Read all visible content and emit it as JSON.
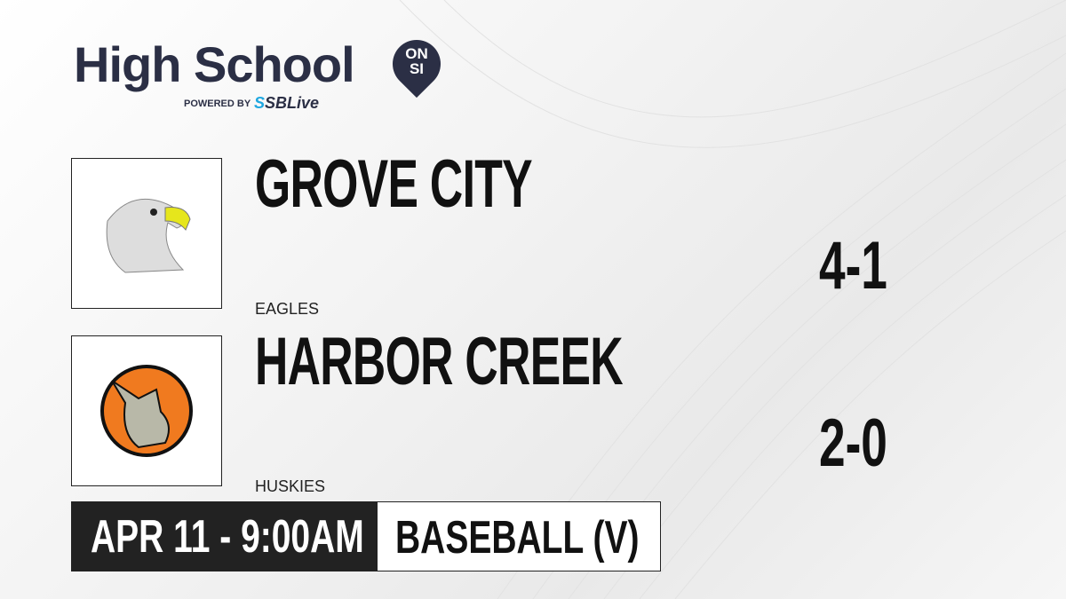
{
  "brand": {
    "title": "High School",
    "badge_top": "ON",
    "badge_bottom": "SI",
    "powered_by": "POWERED BY",
    "partner_prefix": "S",
    "partner": "SBLive"
  },
  "teams": [
    {
      "name": "GROVE CITY",
      "mascot": "EAGLES",
      "record": "4-1",
      "logo": "eagle-logo"
    },
    {
      "name": "HARBOR CREEK",
      "mascot": "HUSKIES",
      "record": "2-0",
      "logo": "husky-logo"
    }
  ],
  "game": {
    "datetime": "APR 11 - 9:00AM",
    "sport": "BASEBALL (V)"
  },
  "colors": {
    "brand": "#2b2f45",
    "accent": "#1ea7e0",
    "husky_orange": "#f07a1f"
  }
}
